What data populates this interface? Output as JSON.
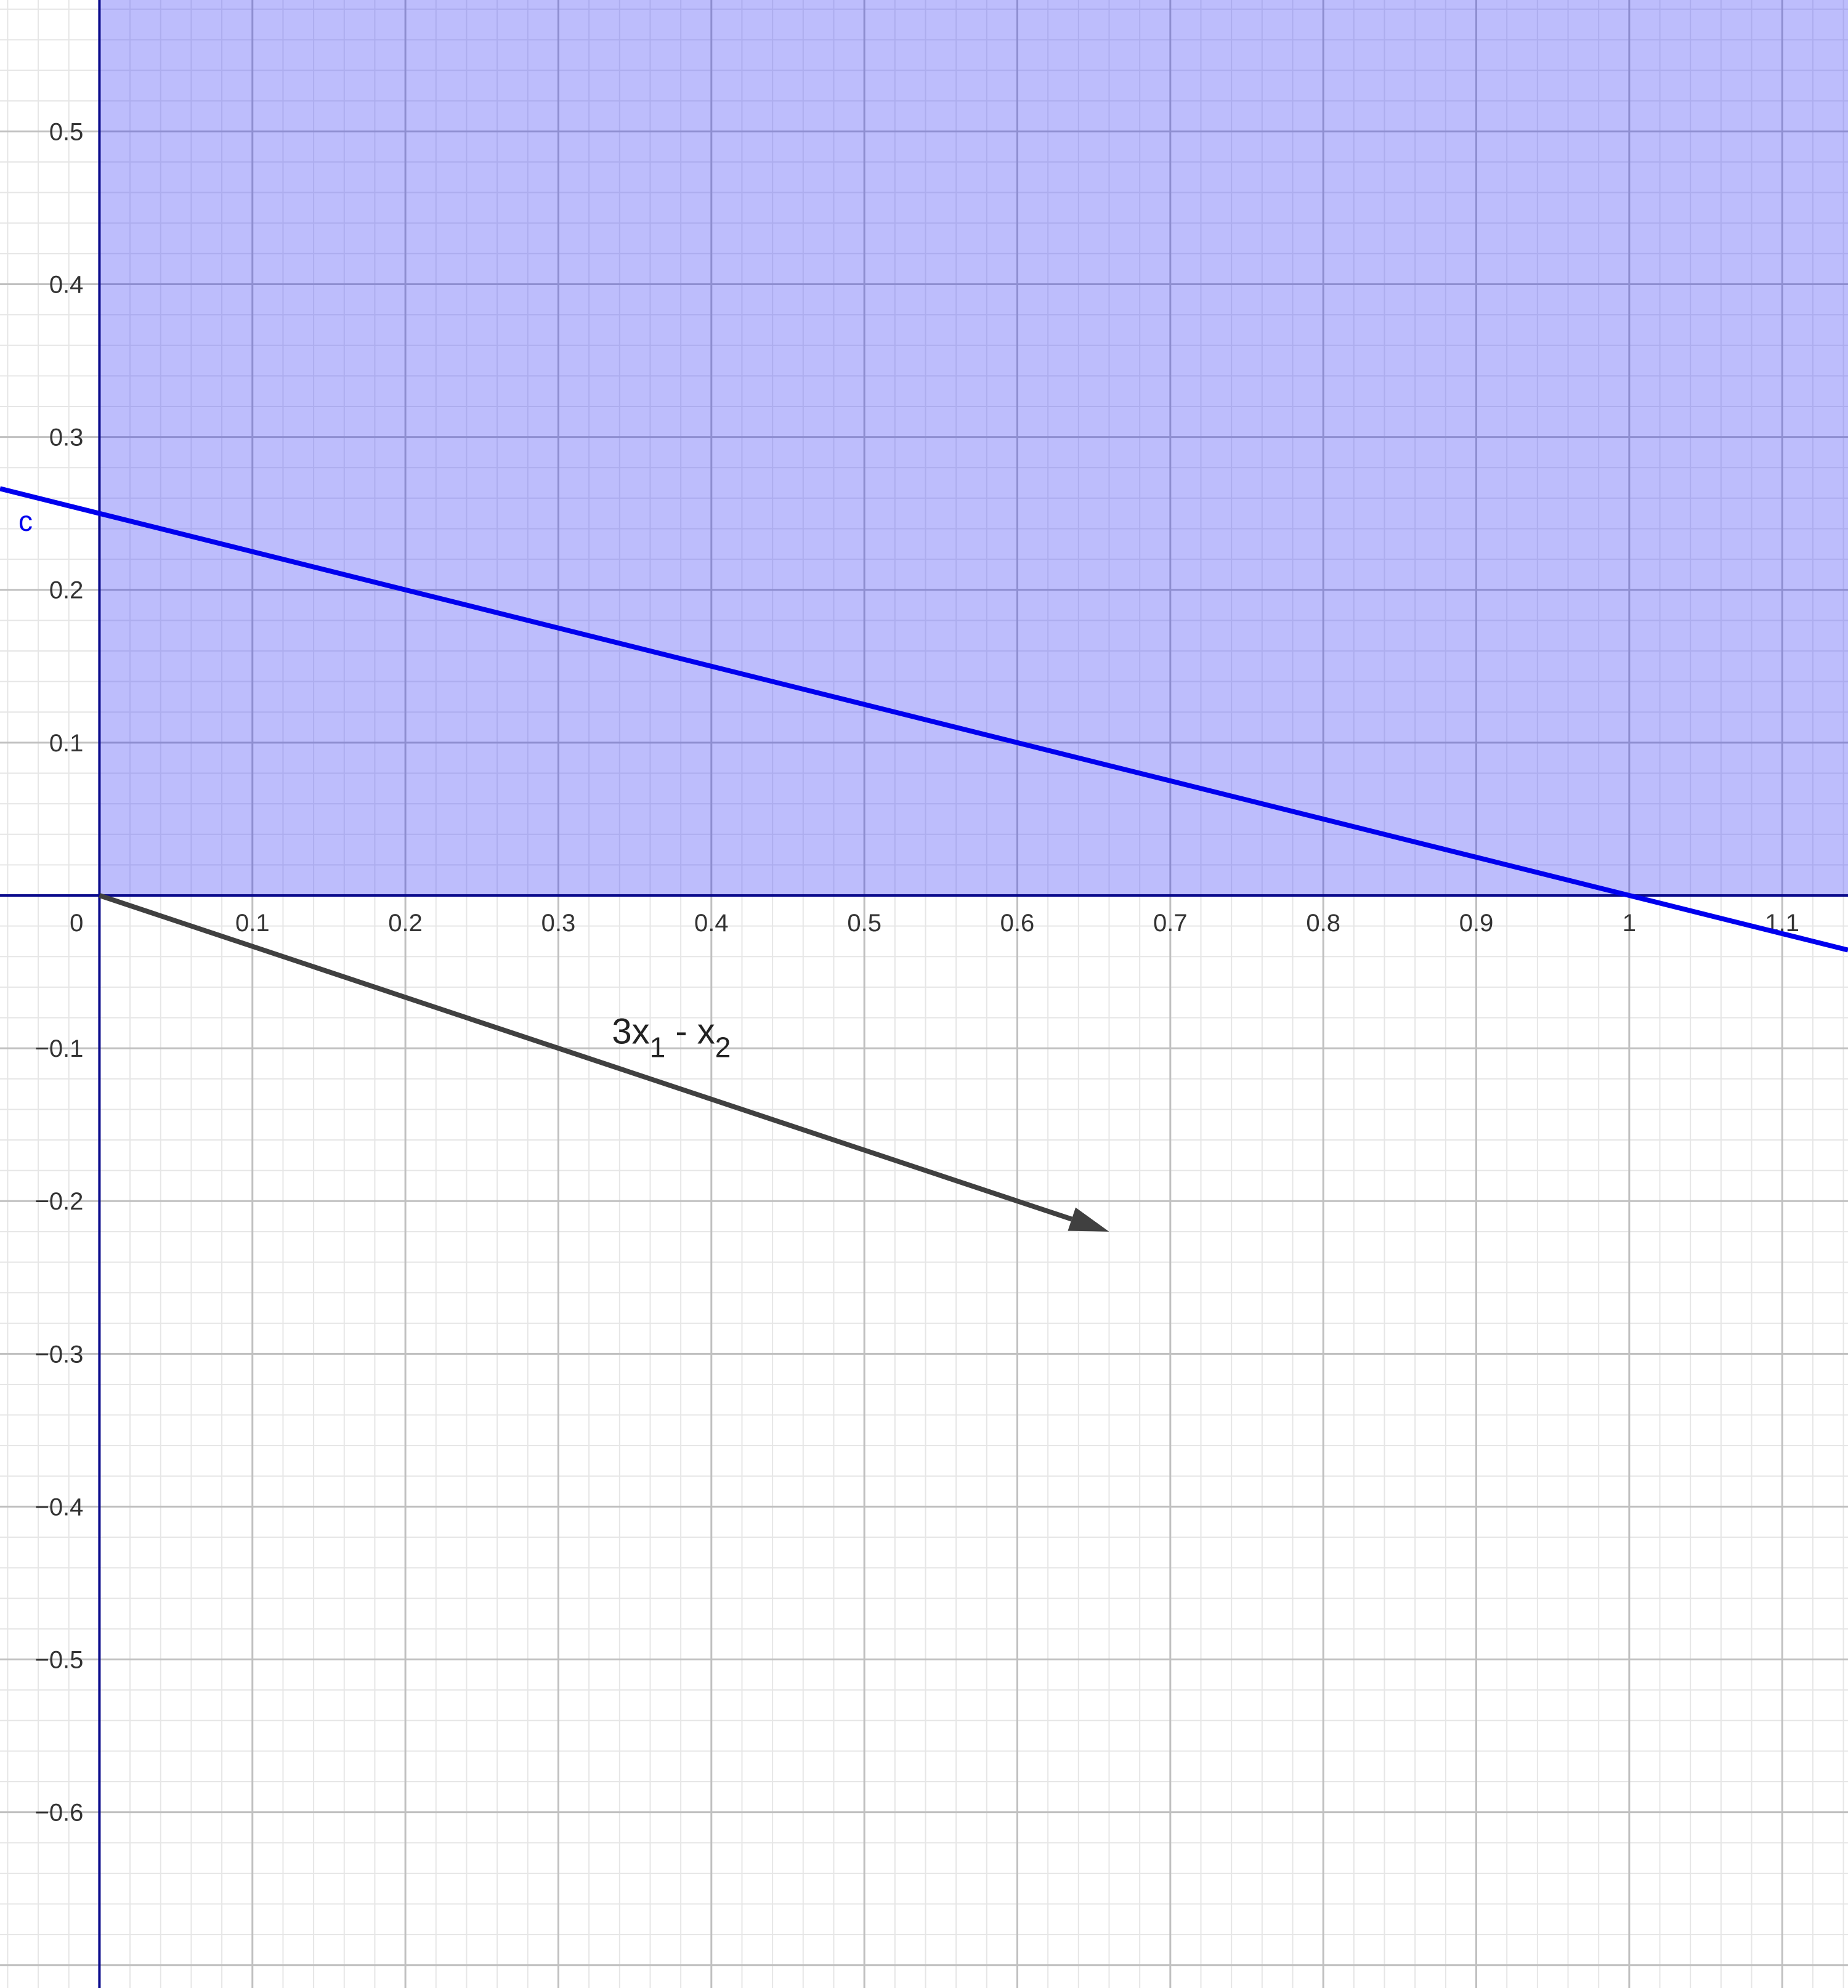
{
  "chart_data": {
    "type": "line",
    "xlim": [
      -0.065,
      1.143
    ],
    "ylim": [
      -0.715,
      0.586
    ],
    "x_ticks": [
      {
        "value": 0.1,
        "label": "0.1"
      },
      {
        "value": 0.2,
        "label": "0.2"
      },
      {
        "value": 0.3,
        "label": "0.3"
      },
      {
        "value": 0.4,
        "label": "0.4"
      },
      {
        "value": 0.5,
        "label": "0.5"
      },
      {
        "value": 0.6,
        "label": "0.6"
      },
      {
        "value": 0.7,
        "label": "0.7"
      },
      {
        "value": 0.8,
        "label": "0.8"
      },
      {
        "value": 0.9,
        "label": "0.9"
      },
      {
        "value": 1,
        "label": "1"
      },
      {
        "value": 1.1,
        "label": "1.1"
      }
    ],
    "y_ticks": [
      {
        "value": 0.5,
        "label": "0.5"
      },
      {
        "value": 0.4,
        "label": "0.4"
      },
      {
        "value": 0.3,
        "label": "0.3"
      },
      {
        "value": 0.2,
        "label": "0.2"
      },
      {
        "value": 0.1,
        "label": "0.1"
      },
      {
        "value": -0.1,
        "label": "−0.1"
      },
      {
        "value": -0.2,
        "label": "−0.2"
      },
      {
        "value": -0.3,
        "label": "−0.3"
      },
      {
        "value": -0.4,
        "label": "−0.4"
      },
      {
        "value": -0.5,
        "label": "−0.5"
      },
      {
        "value": -0.6,
        "label": "−0.6"
      }
    ],
    "origin_label": "0",
    "grid": true,
    "minor_grid_step": 0.02,
    "major_grid_step": 0.1,
    "shaded_region": {
      "description": "x ≥ 0, y ≥ 0 quadrant",
      "x_min": 0,
      "y_min": 0,
      "fill": "#bdbdfc"
    },
    "line": {
      "label": "c",
      "intercept": 0.25,
      "slope": -0.25,
      "color": "#0000ee"
    },
    "vector": {
      "from": [
        0,
        0
      ],
      "to": [
        0.66,
        -0.22
      ],
      "label_main": "3x",
      "label_sub1": "1",
      "label_mid": " - x",
      "label_sub2": "2",
      "label_anchor": [
        0.335,
        -0.097
      ],
      "color": "#404040"
    },
    "colors": {
      "axis": "#0a0a8c",
      "major_grid": "#c0c0c0",
      "minor_grid": "#e6e6e6",
      "major_grid_on_fill": "#8e8ed0",
      "minor_grid_on_fill": "#adadee"
    }
  }
}
